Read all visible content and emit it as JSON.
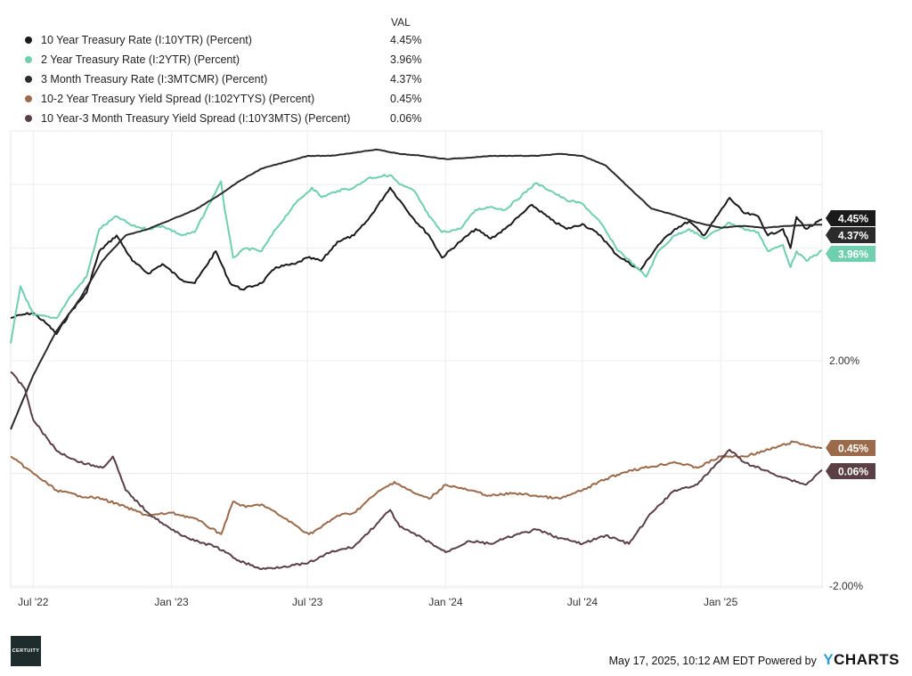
{
  "legend": {
    "header": "VAL",
    "items": [
      {
        "name": "10 Year Treasury Rate (I:10YTR) (Percent)",
        "value": "4.45%",
        "color": "#1a1a1a"
      },
      {
        "name": "2 Year Treasury Rate (I:2YTR) (Percent)",
        "value": "3.96%",
        "color": "#6fcfae"
      },
      {
        "name": "3 Month Treasury Rate (I:3MTCMR) (Percent)",
        "value": "4.37%",
        "color": "#2b2b2b"
      },
      {
        "name": "10-2 Year Treasury Yield Spread (I:102YTYS) (Percent)",
        "value": "0.45%",
        "color": "#9a6a4a"
      },
      {
        "name": "10 Year-3 Month Treasury Yield Spread (I:10Y3MTS) (Percent)",
        "value": "0.06%",
        "color": "#5a4046"
      }
    ]
  },
  "footer": {
    "timestamp": "May 17, 2025, 10:12 AM EDT Powered by",
    "brand_y": "Y",
    "brand_rest": "CHARTS"
  },
  "logo": {
    "text": "CERTUITY"
  },
  "chart_data": {
    "type": "line",
    "x_ticks": [
      "Jul '22",
      "Jan '23",
      "Jul '23",
      "Jan '24",
      "Jul '24",
      "Jan '25"
    ],
    "x_tick_dates": [
      "2022-07-01",
      "2023-01-01",
      "2023-07-01",
      "2024-01-01",
      "2024-07-01",
      "2025-01-01"
    ],
    "x_range": [
      "2022-06-01",
      "2025-05-16"
    ],
    "panels": [
      {
        "id": "rates",
        "ylim": [
          2.3,
          5.8
        ],
        "y_ticks": []
      },
      {
        "id": "spreads",
        "ylim": [
          -2.0,
          2.0
        ],
        "y_ticks": [
          "2.00%",
          "-2.00%"
        ],
        "y_tick_values": [
          2.0,
          -2.0
        ]
      }
    ],
    "series": [
      {
        "name": "10 Year Treasury Rate (I:10YTR) (Percent)",
        "panel": "rates",
        "color": "#1a1a1a",
        "end_label": "4.45%",
        "x": [
          "2022-06-01",
          "2022-06-15",
          "2022-07-01",
          "2022-07-20",
          "2022-08-01",
          "2022-08-20",
          "2022-09-10",
          "2022-09-27",
          "2022-10-20",
          "2022-11-10",
          "2022-12-01",
          "2022-12-20",
          "2023-01-15",
          "2023-02-01",
          "2023-03-01",
          "2023-03-20",
          "2023-04-05",
          "2023-05-01",
          "2023-05-20",
          "2023-06-15",
          "2023-07-01",
          "2023-07-20",
          "2023-08-10",
          "2023-09-01",
          "2023-09-20",
          "2023-10-19",
          "2023-11-01",
          "2023-11-20",
          "2023-12-10",
          "2023-12-27",
          "2024-01-20",
          "2024-02-10",
          "2024-03-01",
          "2024-03-20",
          "2024-04-25",
          "2024-05-20",
          "2024-06-10",
          "2024-07-01",
          "2024-07-25",
          "2024-08-15",
          "2024-09-16",
          "2024-10-10",
          "2024-11-01",
          "2024-11-20",
          "2024-12-10",
          "2025-01-13",
          "2025-02-01",
          "2025-02-20",
          "2025-03-05",
          "2025-03-25",
          "2025-04-04",
          "2025-04-12",
          "2025-04-25",
          "2025-05-16"
        ],
        "y": [
          2.9,
          2.95,
          2.98,
          2.8,
          2.65,
          3.0,
          3.3,
          3.95,
          4.2,
          3.8,
          3.6,
          3.75,
          3.5,
          3.45,
          3.95,
          3.45,
          3.35,
          3.45,
          3.7,
          3.75,
          3.85,
          3.8,
          4.1,
          4.2,
          4.45,
          4.95,
          4.75,
          4.45,
          4.2,
          3.85,
          4.1,
          4.3,
          4.15,
          4.3,
          4.68,
          4.45,
          4.3,
          4.38,
          4.2,
          3.9,
          3.65,
          4.05,
          4.3,
          4.42,
          4.2,
          4.79,
          4.55,
          4.5,
          4.2,
          4.3,
          4.0,
          4.49,
          4.3,
          4.45
        ]
      },
      {
        "name": "2 Year Treasury Rate (I:2YTR) (Percent)",
        "panel": "rates",
        "color": "#6fcfae",
        "end_label": "3.96%",
        "x": [
          "2022-06-01",
          "2022-06-14",
          "2022-07-01",
          "2022-08-01",
          "2022-08-20",
          "2022-09-10",
          "2022-09-27",
          "2022-10-20",
          "2022-11-10",
          "2022-12-01",
          "2022-12-20",
          "2023-01-15",
          "2023-02-01",
          "2023-03-08",
          "2023-03-13",
          "2023-03-24",
          "2023-04-10",
          "2023-05-01",
          "2023-05-20",
          "2023-06-15",
          "2023-07-07",
          "2023-07-20",
          "2023-08-10",
          "2023-09-01",
          "2023-09-20",
          "2023-10-19",
          "2023-11-01",
          "2023-11-20",
          "2023-12-10",
          "2023-12-27",
          "2024-01-20",
          "2024-02-10",
          "2024-03-01",
          "2024-03-20",
          "2024-04-30",
          "2024-05-20",
          "2024-06-10",
          "2024-07-01",
          "2024-07-25",
          "2024-08-15",
          "2024-09-24",
          "2024-10-10",
          "2024-11-01",
          "2024-11-20",
          "2024-12-10",
          "2025-01-13",
          "2025-02-01",
          "2025-02-20",
          "2025-03-05",
          "2025-03-25",
          "2025-04-04",
          "2025-04-12",
          "2025-04-25",
          "2025-05-16"
        ],
        "y": [
          2.5,
          3.4,
          2.95,
          2.9,
          3.25,
          3.55,
          4.3,
          4.5,
          4.35,
          4.3,
          4.35,
          4.2,
          4.25,
          5.05,
          4.6,
          3.85,
          4.0,
          3.95,
          4.3,
          4.7,
          4.95,
          4.8,
          4.9,
          4.95,
          5.1,
          5.15,
          5.0,
          4.9,
          4.5,
          4.25,
          4.3,
          4.6,
          4.65,
          4.6,
          5.02,
          4.9,
          4.75,
          4.7,
          4.4,
          4.0,
          3.55,
          3.95,
          4.2,
          4.3,
          4.15,
          4.4,
          4.3,
          4.25,
          3.95,
          4.05,
          3.7,
          3.95,
          3.8,
          3.96
        ]
      },
      {
        "name": "3 Month Treasury Rate (I:3MTCMR) (Percent)",
        "panel": "rates",
        "color": "#2b2b2b",
        "end_label": "4.37%",
        "x": [
          "2022-06-01",
          "2022-07-01",
          "2022-08-01",
          "2022-09-01",
          "2022-10-01",
          "2022-11-01",
          "2022-12-01",
          "2023-01-01",
          "2023-02-01",
          "2023-03-01",
          "2023-04-01",
          "2023-05-01",
          "2023-06-01",
          "2023-07-01",
          "2023-08-01",
          "2023-09-01",
          "2023-10-01",
          "2023-11-01",
          "2023-12-01",
          "2024-01-01",
          "2024-02-01",
          "2024-03-01",
          "2024-04-01",
          "2024-05-01",
          "2024-06-01",
          "2024-07-01",
          "2024-08-01",
          "2024-09-01",
          "2024-10-01",
          "2024-11-01",
          "2024-12-01",
          "2025-01-01",
          "2025-02-01",
          "2025-03-01",
          "2025-04-01",
          "2025-05-16"
        ],
        "y": [
          1.15,
          2.0,
          2.7,
          3.2,
          3.8,
          4.2,
          4.3,
          4.45,
          4.6,
          4.8,
          5.05,
          5.25,
          5.35,
          5.45,
          5.45,
          5.5,
          5.55,
          5.48,
          5.45,
          5.4,
          5.42,
          5.45,
          5.45,
          5.45,
          5.48,
          5.45,
          5.3,
          4.95,
          4.62,
          4.52,
          4.4,
          4.32,
          4.35,
          4.32,
          4.35,
          4.37
        ]
      },
      {
        "name": "10-2 Year Treasury Yield Spread (I:102YTYS) (Percent)",
        "panel": "spreads",
        "color": "#9a6a4a",
        "end_label": "0.45%",
        "x": [
          "2022-06-01",
          "2022-07-01",
          "2022-08-01",
          "2022-09-01",
          "2022-10-01",
          "2022-11-01",
          "2022-12-01",
          "2023-01-01",
          "2023-02-01",
          "2023-03-08",
          "2023-03-24",
          "2023-04-10",
          "2023-05-01",
          "2023-06-01",
          "2023-07-03",
          "2023-07-20",
          "2023-08-10",
          "2023-09-01",
          "2023-10-01",
          "2023-10-25",
          "2023-11-20",
          "2023-12-10",
          "2024-01-01",
          "2024-02-01",
          "2024-03-01",
          "2024-04-01",
          "2024-05-01",
          "2024-06-01",
          "2024-07-01",
          "2024-08-01",
          "2024-09-01",
          "2024-10-01",
          "2024-11-01",
          "2024-12-01",
          "2025-01-01",
          "2025-02-01",
          "2025-03-01",
          "2025-04-08",
          "2025-04-25",
          "2025-05-16"
        ],
        "y": [
          0.3,
          0.0,
          -0.3,
          -0.4,
          -0.45,
          -0.6,
          -0.75,
          -0.7,
          -0.8,
          -1.08,
          -0.5,
          -0.6,
          -0.55,
          -0.8,
          -1.08,
          -0.95,
          -0.75,
          -0.7,
          -0.35,
          -0.15,
          -0.35,
          -0.45,
          -0.2,
          -0.3,
          -0.4,
          -0.35,
          -0.4,
          -0.45,
          -0.3,
          -0.1,
          0.05,
          0.12,
          0.2,
          0.1,
          0.3,
          0.3,
          0.4,
          0.56,
          0.5,
          0.45
        ]
      },
      {
        "name": "10 Year-3 Month Treasury Yield Spread (I:10Y3MTS) (Percent)",
        "panel": "spreads",
        "color": "#5a4046",
        "end_label": "0.06%",
        "x": [
          "2022-06-01",
          "2022-06-20",
          "2022-07-01",
          "2022-08-01",
          "2022-09-01",
          "2022-10-01",
          "2022-10-15",
          "2022-11-01",
          "2022-12-01",
          "2023-01-01",
          "2023-02-01",
          "2023-03-01",
          "2023-04-01",
          "2023-05-01",
          "2023-06-01",
          "2023-07-01",
          "2023-08-01",
          "2023-09-01",
          "2023-10-01",
          "2023-10-19",
          "2023-11-01",
          "2023-12-01",
          "2024-01-01",
          "2024-02-01",
          "2024-03-01",
          "2024-04-01",
          "2024-05-01",
          "2024-06-01",
          "2024-07-01",
          "2024-08-01",
          "2024-09-01",
          "2024-10-01",
          "2024-11-01",
          "2024-12-01",
          "2025-01-13",
          "2025-02-01",
          "2025-03-01",
          "2025-04-01",
          "2025-04-25",
          "2025-05-16"
        ],
        "y": [
          1.8,
          1.5,
          0.95,
          0.4,
          0.2,
          0.1,
          0.3,
          -0.3,
          -0.7,
          -1.0,
          -1.2,
          -1.3,
          -1.55,
          -1.7,
          -1.65,
          -1.6,
          -1.4,
          -1.3,
          -0.9,
          -0.65,
          -0.95,
          -1.15,
          -1.4,
          -1.2,
          -1.25,
          -1.1,
          -1.0,
          -1.15,
          -1.25,
          -1.1,
          -1.25,
          -0.7,
          -0.3,
          -0.2,
          0.42,
          0.2,
          0.05,
          -0.1,
          -0.2,
          0.06
        ]
      }
    ]
  }
}
